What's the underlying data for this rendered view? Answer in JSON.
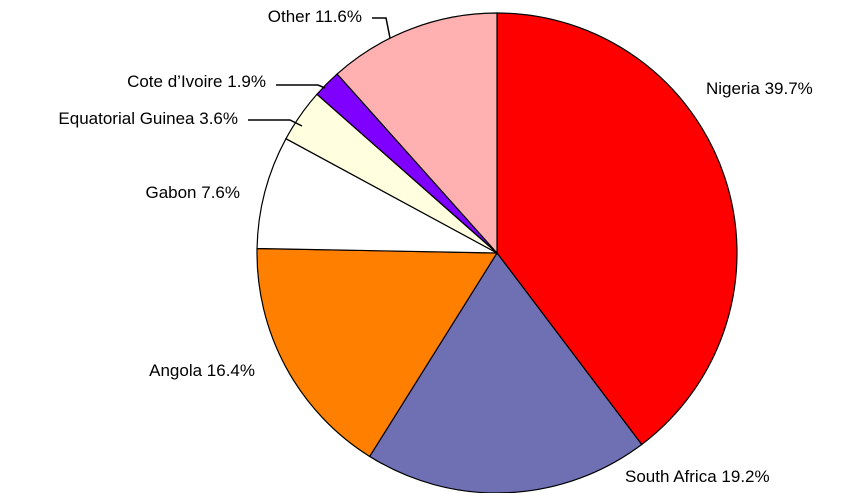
{
  "chart_data": {
    "type": "pie",
    "categories": [
      "Nigeria",
      "South Africa",
      "Angola",
      "Gabon",
      "Equatorial Guinea",
      "Cote d’Ivoire",
      "Other"
    ],
    "values": [
      39.7,
      19.2,
      16.4,
      7.6,
      3.6,
      1.9,
      11.6
    ],
    "value_labels": [
      "39.7%",
      "19.2%",
      "16.4%",
      "7.6%",
      "3.6%",
      "1.9%",
      "11.6%"
    ],
    "colors": [
      "#ff0000",
      "#6f70b4",
      "#ff8000",
      "#ffffff",
      "#ffffe0",
      "#8000ff",
      "#ffb0b0"
    ]
  }
}
